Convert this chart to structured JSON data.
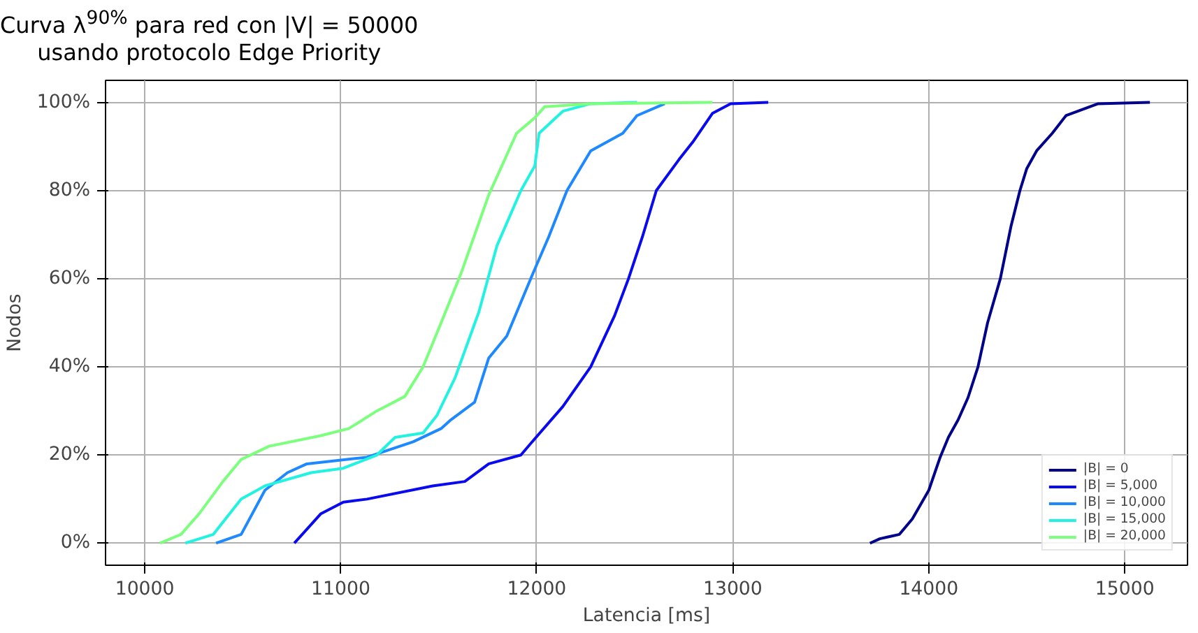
{
  "chart_data": {
    "type": "line",
    "title": "Curva λ$^{90%}$ para red con |V| = 50000",
    "subtitle": "usando protocolo Edge Priority",
    "xlabel": "Latencia [ms]",
    "ylabel": "Nodos",
    "xlim": [
      9800,
      15320
    ],
    "ylim": [
      -0.05,
      1.05
    ],
    "xticks": [
      10000,
      11000,
      12000,
      13000,
      14000,
      15000
    ],
    "yticks": [
      {
        "value": 0,
        "label": "0%"
      },
      {
        "value": 0.2,
        "label": "20%"
      },
      {
        "value": 0.4,
        "label": "40%"
      },
      {
        "value": 0.6,
        "label": "60%"
      },
      {
        "value": 0.8,
        "label": "80%"
      },
      {
        "value": 1.0,
        "label": "100%"
      }
    ],
    "grid": true,
    "legend": "bottom right",
    "series": [
      {
        "name": "|B| = 0",
        "color": "#00008b",
        "x": [
          13700,
          13750,
          13850,
          13916,
          14000,
          14058,
          14100,
          14150,
          14200,
          14251,
          14300,
          14365,
          14420,
          14465,
          14500,
          14550,
          14630,
          14700,
          14864,
          15128
        ],
        "values": [
          0,
          0.01,
          0.02,
          0.055,
          0.12,
          0.195,
          0.24,
          0.28,
          0.33,
          0.4,
          0.5,
          0.6,
          0.72,
          0.8,
          0.85,
          0.89,
          0.93,
          0.97,
          0.997,
          1.0
        ]
      },
      {
        "name": "|B| = 5,000",
        "color": "#0a0aee",
        "x": [
          10763,
          10899,
          11013,
          11134,
          11469,
          11633,
          11755,
          11919,
          11990,
          12133,
          12275,
          12397,
          12468,
          12539,
          12610,
          12725,
          12796,
          12896,
          12989,
          13181
        ],
        "values": [
          0,
          0.067,
          0.093,
          0.1,
          0.13,
          0.14,
          0.18,
          0.2,
          0.237,
          0.31,
          0.4,
          0.516,
          0.6,
          0.695,
          0.8,
          0.87,
          0.91,
          0.975,
          0.997,
          1.0
        ]
      },
      {
        "name": "|B| = 10,000",
        "color": "#1e88ff",
        "x": [
          10364,
          10492,
          10613,
          10728,
          10827,
          11134,
          11369,
          11512,
          11562,
          11683,
          11755,
          11847,
          11969,
          12061,
          12154,
          12275,
          12439,
          12511,
          12653
        ],
        "values": [
          0,
          0.02,
          0.12,
          0.16,
          0.18,
          0.195,
          0.23,
          0.26,
          0.28,
          0.32,
          0.42,
          0.47,
          0.6,
          0.695,
          0.8,
          0.89,
          0.93,
          0.97,
          0.997
        ]
      },
      {
        "name": "|B| = 15,000",
        "color": "#22f2e0",
        "x": [
          10207,
          10350,
          10492,
          10613,
          10849,
          11013,
          11184,
          11277,
          11420,
          11491,
          11583,
          11705,
          11797,
          11919,
          11990,
          12012,
          12133,
          12275,
          12511
        ],
        "values": [
          0,
          0.02,
          0.1,
          0.13,
          0.16,
          0.17,
          0.2,
          0.24,
          0.25,
          0.29,
          0.375,
          0.525,
          0.675,
          0.8,
          0.856,
          0.93,
          0.98,
          0.997,
          1.0
        ]
      },
      {
        "name": "|B| = 20,000",
        "color": "#7cff7c",
        "x": [
          10078,
          10185,
          10278,
          10399,
          10492,
          10635,
          10899,
          11041,
          11184,
          11327,
          11420,
          11512,
          11612,
          11755,
          11897,
          11990,
          12040,
          12275,
          12896
        ],
        "values": [
          0,
          0.02,
          0.067,
          0.14,
          0.19,
          0.22,
          0.244,
          0.26,
          0.3,
          0.333,
          0.4,
          0.5,
          0.61,
          0.79,
          0.93,
          0.965,
          0.99,
          0.997,
          1.0
        ]
      }
    ]
  }
}
